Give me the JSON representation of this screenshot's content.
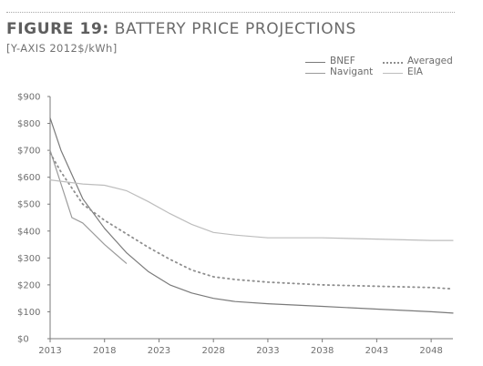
{
  "header": {
    "title_bold": "FIGURE 19:",
    "title_rest": " BATTERY PRICE PROJECTIONS",
    "subtitle": "[Y-AXIS 2012$/kWh]"
  },
  "legend": {
    "bnef": "BNEF",
    "navigant": "Navigant",
    "averaged": "Averaged",
    "eia": "EIA"
  },
  "colors": {
    "bnef": "#7a7a7a",
    "navigant": "#9a9a9a",
    "averaged": "#8e8e8e",
    "eia": "#bdbdbd",
    "axis": "#7a7a7a",
    "text": "#6f6f6f"
  },
  "chart_data": {
    "type": "line",
    "xlim": [
      2013,
      2050
    ],
    "ylim": [
      0,
      900
    ],
    "xticks": [
      2013,
      2018,
      2023,
      2028,
      2033,
      2038,
      2043,
      2048
    ],
    "yticks": [
      {
        "value": 0,
        "label": "$0"
      },
      {
        "value": 100,
        "label": "$100"
      },
      {
        "value": 200,
        "label": "$200"
      },
      {
        "value": 300,
        "label": "$300"
      },
      {
        "value": 400,
        "label": "$400"
      },
      {
        "value": 500,
        "label": "$500"
      },
      {
        "value": 600,
        "label": "$600"
      },
      {
        "value": 700,
        "label": "$700"
      },
      {
        "value": 800,
        "label": "$800"
      },
      {
        "value": 900,
        "label": "$900"
      }
    ],
    "grid": false,
    "legend_position": "top-right",
    "series": [
      {
        "name": "BNEF",
        "style": "solid",
        "points": [
          [
            2013,
            820
          ],
          [
            2014,
            700
          ],
          [
            2016,
            520
          ],
          [
            2018,
            410
          ],
          [
            2020,
            320
          ],
          [
            2022,
            250
          ],
          [
            2024,
            200
          ],
          [
            2026,
            170
          ],
          [
            2028,
            150
          ],
          [
            2030,
            138
          ],
          [
            2033,
            130
          ],
          [
            2038,
            120
          ],
          [
            2043,
            110
          ],
          [
            2048,
            100
          ],
          [
            2050,
            95
          ]
        ]
      },
      {
        "name": "Navigant",
        "style": "solid",
        "points": [
          [
            2013,
            700
          ],
          [
            2015,
            450
          ],
          [
            2016,
            430
          ],
          [
            2018,
            350
          ],
          [
            2020,
            280
          ]
        ]
      },
      {
        "name": "Averaged",
        "style": "dotted",
        "points": [
          [
            2013,
            690
          ],
          [
            2014,
            620
          ],
          [
            2016,
            500
          ],
          [
            2018,
            440
          ],
          [
            2020,
            390
          ],
          [
            2022,
            340
          ],
          [
            2024,
            295
          ],
          [
            2026,
            255
          ],
          [
            2028,
            230
          ],
          [
            2030,
            220
          ],
          [
            2033,
            210
          ],
          [
            2038,
            200
          ],
          [
            2043,
            195
          ],
          [
            2048,
            190
          ],
          [
            2050,
            185
          ]
        ]
      },
      {
        "name": "EIA",
        "style": "solid",
        "points": [
          [
            2013,
            590
          ],
          [
            2016,
            575
          ],
          [
            2018,
            570
          ],
          [
            2020,
            550
          ],
          [
            2022,
            510
          ],
          [
            2024,
            465
          ],
          [
            2026,
            425
          ],
          [
            2028,
            395
          ],
          [
            2030,
            385
          ],
          [
            2033,
            375
          ],
          [
            2038,
            375
          ],
          [
            2043,
            370
          ],
          [
            2048,
            365
          ],
          [
            2050,
            365
          ]
        ]
      }
    ]
  }
}
